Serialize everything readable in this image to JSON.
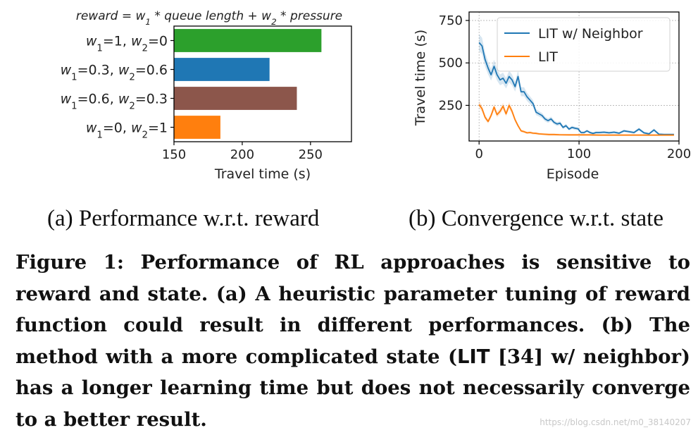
{
  "figure": {
    "sub_a": "(a) Performance w.r.t. reward",
    "sub_b": "(b) Convergence w.r.t. state",
    "caption": {
      "part1": "Figure 1: Performance of RL approaches is sensitive to reward and state. (a) A heuristic parameter tuning of reward function could result in different performances. (b) The method with a more complicated state (",
      "lit": "LIT",
      "part2": " [34] w/ neighbor) has a longer learning time but does not necessarily converge to a better result."
    },
    "watermark": "https://blog.csdn.net/m0_38140207"
  },
  "chart_data": [
    {
      "type": "bar",
      "orientation": "horizontal",
      "title": "reward = w1 * queue length + w2 * pressure",
      "xlabel": "Travel time (s)",
      "ylabel": "",
      "xlim": [
        150,
        280
      ],
      "xticks": [
        150,
        200,
        250
      ],
      "categories": [
        "w1=1, w2=0",
        "w1=0.3, w2=0.6",
        "w1=0.6, w2=0.3",
        "w1=0, w2=1"
      ],
      "values": [
        258,
        220,
        240,
        184
      ],
      "colors": [
        "#2ca02c",
        "#1f77b4",
        "#8c564b",
        "#ff7f0e"
      ],
      "grid": false
    },
    {
      "type": "line",
      "xlabel": "Episode",
      "ylabel": "Travel time (s)",
      "xlim": [
        -10,
        200
      ],
      "ylim": [
        40,
        800
      ],
      "xticks": [
        0,
        100,
        200
      ],
      "yticks": [
        250,
        500,
        750
      ],
      "grid": true,
      "legend": "top-right",
      "series": [
        {
          "name": "LIT w/ Neighbor",
          "color": "#1f77b4",
          "x": [
            0,
            3,
            6,
            9,
            12,
            15,
            18,
            21,
            24,
            27,
            30,
            33,
            36,
            39,
            42,
            45,
            48,
            51,
            54,
            57,
            60,
            63,
            66,
            69,
            72,
            75,
            78,
            81,
            84,
            87,
            90,
            93,
            96,
            99,
            102,
            105,
            108,
            111,
            114,
            117,
            120,
            125,
            130,
            135,
            140,
            145,
            150,
            155,
            160,
            165,
            170,
            175,
            180,
            185,
            190,
            195
          ],
          "values": [
            620,
            600,
            520,
            470,
            430,
            480,
            430,
            400,
            410,
            380,
            420,
            400,
            360,
            420,
            330,
            330,
            300,
            280,
            260,
            210,
            200,
            190,
            170,
            160,
            170,
            150,
            140,
            145,
            120,
            130,
            110,
            120,
            115,
            112,
            90,
            90,
            100,
            90,
            85,
            90,
            90,
            92,
            88,
            92,
            86,
            100,
            95,
            90,
            110,
            88,
            82,
            105,
            80,
            78,
            78,
            78
          ]
        },
        {
          "name": "LIT",
          "color": "#ff7f0e",
          "x": [
            0,
            3,
            6,
            9,
            12,
            15,
            18,
            21,
            24,
            27,
            30,
            33,
            36,
            39,
            42,
            45,
            48,
            51,
            54,
            57,
            60,
            65,
            70,
            75,
            80,
            90,
            100,
            110,
            120,
            130,
            140,
            150,
            160,
            170,
            180,
            190,
            195
          ],
          "values": [
            255,
            230,
            180,
            155,
            190,
            240,
            195,
            215,
            245,
            200,
            250,
            215,
            165,
            130,
            100,
            95,
            88,
            90,
            86,
            85,
            82,
            80,
            78,
            78,
            77,
            76,
            76,
            76,
            75,
            75,
            75,
            75,
            75,
            75,
            75,
            75,
            75
          ]
        }
      ]
    }
  ]
}
